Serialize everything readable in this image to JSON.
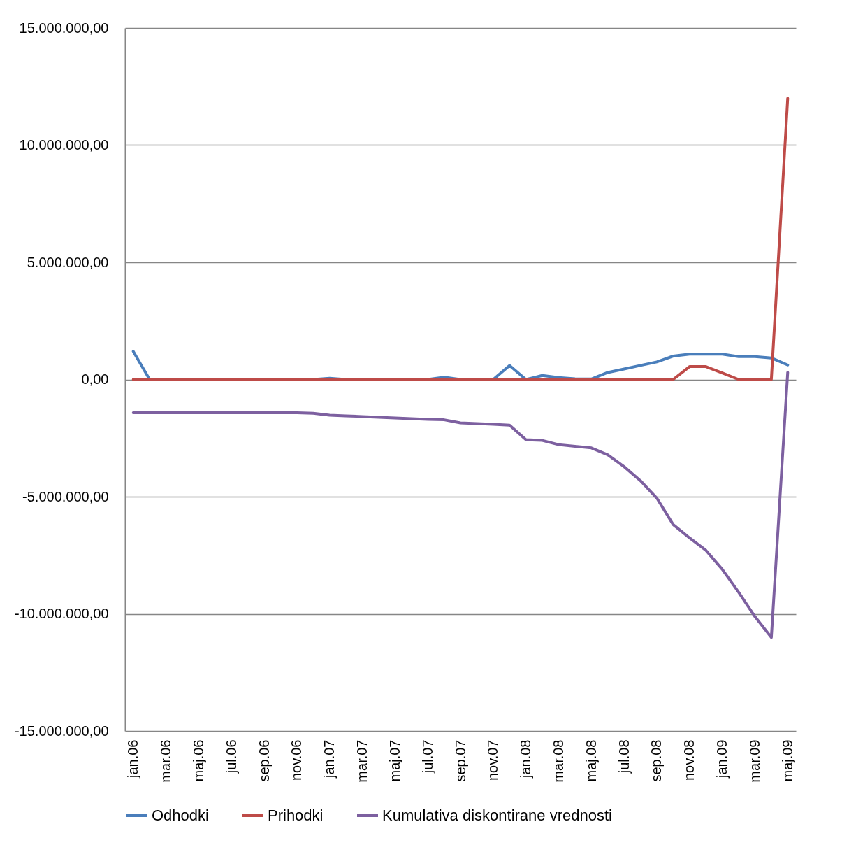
{
  "chart_data": {
    "type": "line",
    "categories": [
      "jan.06",
      null,
      "mar.06",
      null,
      "maj.06",
      null,
      "jul.06",
      null,
      "sep.06",
      null,
      "nov.06",
      null,
      "jan.07",
      null,
      "mar.07",
      null,
      "maj.07",
      null,
      "jul.07",
      null,
      "sep.07",
      null,
      "nov.07",
      null,
      "jan.08",
      null,
      "mar.08",
      null,
      "maj.08",
      null,
      "jul.08",
      null,
      "sep.08",
      null,
      "nov.08",
      null,
      "jan.09",
      null,
      "mar.09",
      null,
      "maj.09"
    ],
    "series": [
      {
        "name": "Odhodki",
        "color": "#4a7ebb",
        "values": [
          1200000,
          0,
          0,
          0,
          0,
          0,
          0,
          0,
          0,
          0,
          0,
          0,
          50000,
          0,
          0,
          0,
          0,
          0,
          0,
          100000,
          0,
          0,
          0,
          600000,
          0,
          170000,
          80000,
          30000,
          20000,
          300000,
          450000,
          600000,
          750000,
          1000000,
          1080000,
          1080000,
          1080000,
          980000,
          980000,
          920000,
          620000
        ]
      },
      {
        "name": "Prihodki",
        "color": "#be4b48",
        "values": [
          0,
          0,
          0,
          0,
          0,
          0,
          0,
          0,
          0,
          0,
          0,
          0,
          0,
          0,
          0,
          0,
          0,
          0,
          0,
          0,
          0,
          0,
          0,
          0,
          0,
          0,
          0,
          0,
          0,
          0,
          0,
          0,
          0,
          0,
          550000,
          550000,
          280000,
          0,
          0,
          0,
          12000000
        ]
      },
      {
        "name": "Kumulativa diskontirane vrednosti",
        "color": "#7d60a0",
        "values": [
          -1420000,
          -1420000,
          -1420000,
          -1420000,
          -1420000,
          -1420000,
          -1420000,
          -1420000,
          -1420000,
          -1420000,
          -1420000,
          -1440000,
          -1520000,
          -1550000,
          -1580000,
          -1610000,
          -1640000,
          -1670000,
          -1700000,
          -1720000,
          -1850000,
          -1880000,
          -1910000,
          -1950000,
          -2570000,
          -2600000,
          -2780000,
          -2850000,
          -2920000,
          -3210000,
          -3720000,
          -4320000,
          -5060000,
          -6190000,
          -6760000,
          -7290000,
          -8100000,
          -9080000,
          -10120000,
          -11010000,
          300000
        ]
      }
    ],
    "ylim": [
      -15000000,
      15000000
    ],
    "yticks": [
      {
        "value": -15000000,
        "label": "-15.000.000,00"
      },
      {
        "value": -10000000,
        "label": "-10.000.000,00"
      },
      {
        "value": -5000000,
        "label": "-5.000.000,00"
      },
      {
        "value": 0,
        "label": "0,00"
      },
      {
        "value": 5000000,
        "label": "5.000.000,00"
      },
      {
        "value": 10000000,
        "label": "10.000.000,00"
      },
      {
        "value": 15000000,
        "label": "15.000.000,00"
      }
    ],
    "grid": "y",
    "legend": "bottom",
    "marker": "none",
    "line_style": "solid"
  }
}
